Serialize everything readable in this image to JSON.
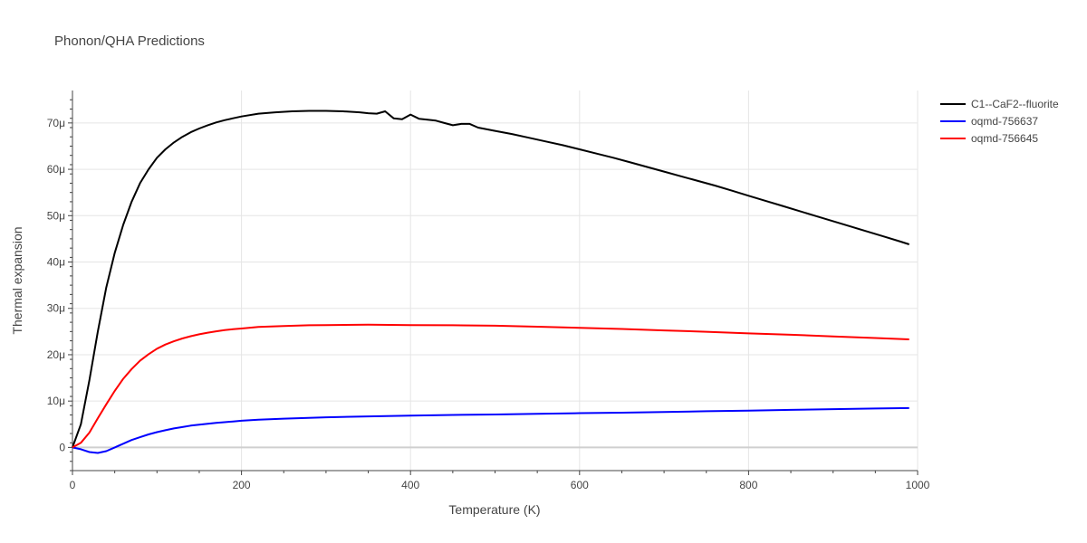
{
  "chart_data": {
    "type": "line",
    "title": "Phonon/QHA Predictions",
    "xlabel": "Temperature (K)",
    "ylabel": "Thermal expansion",
    "xlim": [
      0,
      1000
    ],
    "ylim": [
      -5,
      77
    ],
    "x_ticks": [
      0,
      200,
      400,
      600,
      800,
      1000
    ],
    "x_tick_labels": [
      "0",
      "200",
      "400",
      "600",
      "800",
      "1000"
    ],
    "y_ticks": [
      0,
      10,
      20,
      30,
      40,
      50,
      60,
      70
    ],
    "y_tick_labels": [
      "0",
      "10μ",
      "20μ",
      "30μ",
      "40μ",
      "50μ",
      "60μ",
      "70μ"
    ],
    "y_unit_note": "values in units of 1e-6",
    "grid": true,
    "legend_position": "top-right",
    "series": [
      {
        "name": "C1--CaF2--fluorite",
        "color": "#000000",
        "x": [
          0,
          10,
          20,
          30,
          40,
          50,
          60,
          70,
          80,
          90,
          100,
          110,
          120,
          130,
          140,
          150,
          160,
          170,
          180,
          190,
          200,
          220,
          240,
          260,
          280,
          300,
          320,
          340,
          350,
          360,
          370,
          380,
          390,
          400,
          410,
          420,
          430,
          440,
          450,
          460,
          470,
          480,
          500,
          520,
          540,
          560,
          580,
          600,
          620,
          640,
          660,
          680,
          700,
          720,
          740,
          760,
          780,
          800,
          820,
          840,
          860,
          880,
          900,
          920,
          940,
          960,
          980,
          990
        ],
        "y": [
          0,
          5,
          14.5,
          25,
          34.5,
          42,
          48,
          53,
          57,
          60,
          62.5,
          64.3,
          65.8,
          67,
          68,
          68.8,
          69.5,
          70.1,
          70.6,
          71,
          71.4,
          72,
          72.3,
          72.5,
          72.6,
          72.6,
          72.5,
          72.3,
          72.1,
          72,
          72.5,
          71,
          70.8,
          71.8,
          70.9,
          70.7,
          70.5,
          70,
          69.5,
          69.8,
          69.8,
          69,
          68.3,
          67.6,
          66.8,
          66,
          65.2,
          64.3,
          63.4,
          62.5,
          61.5,
          60.5,
          59.5,
          58.5,
          57.5,
          56.5,
          55.4,
          54.3,
          53.2,
          52.1,
          51,
          49.9,
          48.8,
          47.7,
          46.6,
          45.5,
          44.4,
          43.8
        ]
      },
      {
        "name": "oqmd-756637",
        "color": "#0000ff",
        "x": [
          0,
          10,
          20,
          30,
          40,
          50,
          60,
          70,
          80,
          90,
          100,
          110,
          120,
          130,
          140,
          150,
          160,
          170,
          180,
          190,
          200,
          220,
          250,
          300,
          350,
          400,
          450,
          500,
          550,
          600,
          650,
          700,
          750,
          800,
          850,
          900,
          950,
          990
        ],
        "y": [
          0,
          -0.4,
          -1.0,
          -1.2,
          -0.8,
          0.0,
          0.8,
          1.6,
          2.2,
          2.8,
          3.3,
          3.7,
          4.1,
          4.4,
          4.7,
          4.9,
          5.1,
          5.3,
          5.45,
          5.6,
          5.75,
          6.0,
          6.2,
          6.5,
          6.7,
          6.85,
          7.0,
          7.1,
          7.25,
          7.4,
          7.5,
          7.65,
          7.8,
          7.95,
          8.1,
          8.25,
          8.4,
          8.5
        ]
      },
      {
        "name": "oqmd-756645",
        "color": "#ff0000",
        "x": [
          0,
          10,
          20,
          30,
          40,
          50,
          60,
          70,
          80,
          90,
          100,
          110,
          120,
          130,
          140,
          150,
          160,
          170,
          180,
          190,
          200,
          220,
          250,
          280,
          300,
          350,
          400,
          450,
          500,
          550,
          600,
          650,
          700,
          750,
          800,
          850,
          900,
          950,
          990
        ],
        "y": [
          0,
          1.0,
          3.2,
          6.3,
          9.3,
          12.2,
          14.8,
          16.9,
          18.7,
          20.1,
          21.3,
          22.2,
          22.9,
          23.5,
          24.0,
          24.4,
          24.75,
          25.05,
          25.3,
          25.5,
          25.65,
          26.0,
          26.2,
          26.35,
          26.4,
          26.5,
          26.4,
          26.35,
          26.25,
          26.05,
          25.8,
          25.55,
          25.25,
          24.95,
          24.6,
          24.3,
          23.95,
          23.6,
          23.3
        ]
      }
    ]
  }
}
